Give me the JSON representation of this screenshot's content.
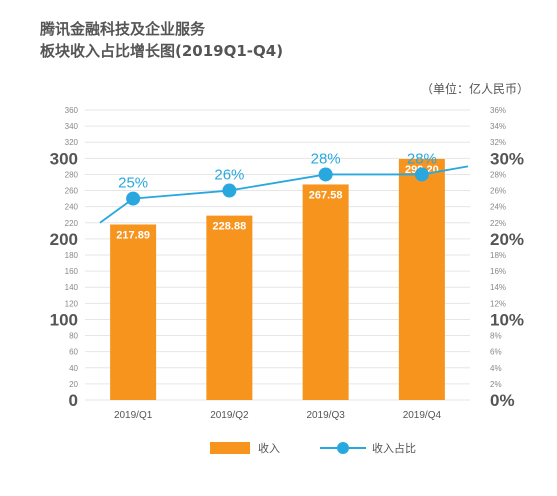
{
  "title_line1": "腾讯金融科技及企业服务",
  "title_line2": "板块收入占比增长图(2019Q1-Q4)",
  "unit_label": "（单位：亿人民币）",
  "legend": {
    "bar_label": "收入",
    "line_label": "收入占比"
  },
  "colors": {
    "bar": "#f7941d",
    "line": "#29a8e0",
    "grid": "#e6e6e6",
    "axis_text": "#888888",
    "major_axis_text": "#555555"
  },
  "chart_data": {
    "type": "bar",
    "title": "腾讯金融科技及企业服务 板块收入占比增长图(2019Q1-Q4)",
    "categories": [
      "2019/Q1",
      "2019/Q2",
      "2019/Q3",
      "2019/Q4"
    ],
    "series": [
      {
        "name": "收入",
        "type": "bar",
        "axis": "left",
        "values": [
          217.89,
          228.88,
          267.58,
          299.2
        ],
        "labels": [
          "217.89",
          "228.88",
          "267.58",
          "299.20"
        ]
      },
      {
        "name": "收入占比",
        "type": "line",
        "axis": "right",
        "values": [
          25,
          26,
          28,
          28
        ],
        "labels": [
          "25%",
          "26%",
          "28%",
          "28%"
        ]
      }
    ],
    "ylim_left": [
      0,
      360
    ],
    "ylim_right": [
      0,
      36
    ],
    "left_ticks": [
      "0",
      "20",
      "40",
      "60",
      "80",
      "100",
      "120",
      "140",
      "160",
      "180",
      "200",
      "220",
      "240",
      "260",
      "280",
      "300",
      "320",
      "340",
      "360"
    ],
    "left_major_ticks": [
      "0",
      "100",
      "200",
      "300"
    ],
    "right_ticks": [
      "0%",
      "2%",
      "4%",
      "6%",
      "8%",
      "10%",
      "12%",
      "14%",
      "16%",
      "18%",
      "20%",
      "22%",
      "24%",
      "26%",
      "28%",
      "30%",
      "32%",
      "34%",
      "36%"
    ],
    "right_major_ticks": [
      "0%",
      "10%",
      "20%",
      "30%"
    ],
    "trend_line": {
      "start_value": 22,
      "end_value": 29
    },
    "grid": true,
    "legend_position": "bottom"
  }
}
